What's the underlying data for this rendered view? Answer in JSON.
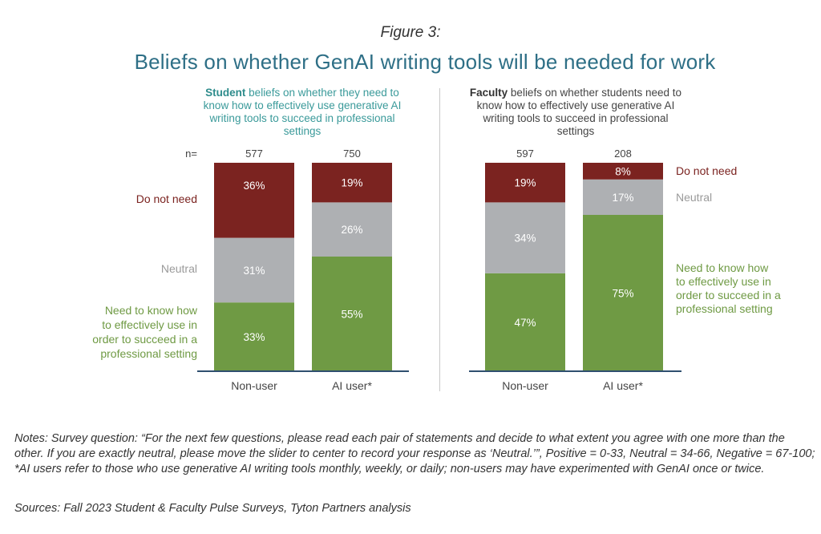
{
  "figure_label": "Figure 3:",
  "title": "Beliefs on whether GenAI writing tools will be needed for work",
  "student_panel": {
    "bold": "Student",
    "text": " beliefs on whether they need to know how to effectively use generative AI writing tools to succeed in professional settings"
  },
  "faculty_panel": {
    "bold": "Faculty",
    "text": " beliefs on whether students need to know how to effectively use generative AI writing tools to succeed in professional settings"
  },
  "n_label": "n=",
  "notes": "Notes: Survey question: “For the next few questions, please read each pair of statements and decide to what extent you agree with one more than the other. If you are exactly neutral, please move the slider to center to record your response as ‘Neutral.’”, Positive = 0-33, Neutral = 34-66, Negative = 67-100; *AI users refer to those who use generative AI writing tools monthly, weekly, or daily; non-users may have experimented with GenAI once or twice.",
  "sources": "Sources: Fall 2023 Student & Faculty Pulse Surveys, Tyton Partners analysis",
  "colors": {
    "do_not_need": "#7b2320",
    "neutral": "#aeb0b3",
    "need_to_know": "#6f9a44",
    "axis": "#2f4f6f"
  },
  "chart_data": {
    "type": "bar",
    "stacked": true,
    "ylim": [
      0,
      100
    ],
    "categories": [
      "Non-user",
      "AI user*",
      "Non-user",
      "AI user*"
    ],
    "groups": [
      "Student",
      "Student",
      "Faculty",
      "Faculty"
    ],
    "n": [
      "577",
      "750",
      "597",
      "208"
    ],
    "series": [
      {
        "name": "Need to know how to effectively use in order to succeed in a professional setting",
        "values": [
          33,
          55,
          47,
          75
        ],
        "labels": [
          "33%",
          "55%",
          "47%",
          "75%"
        ]
      },
      {
        "name": "Neutral",
        "values": [
          31,
          26,
          34,
          17
        ],
        "labels": [
          "31%",
          "26%",
          "34%",
          "17%"
        ]
      },
      {
        "name": "Do not need",
        "values": [
          36,
          19,
          19,
          8
        ],
        "labels": [
          "36%",
          "19%",
          "19%",
          "8%"
        ]
      }
    ],
    "legend": {
      "do_not_need": "Do not need",
      "neutral": "Neutral",
      "need_to_know_lines": [
        "Need to know how",
        "to effectively use in",
        "order to succeed in a",
        "professional setting"
      ]
    }
  }
}
